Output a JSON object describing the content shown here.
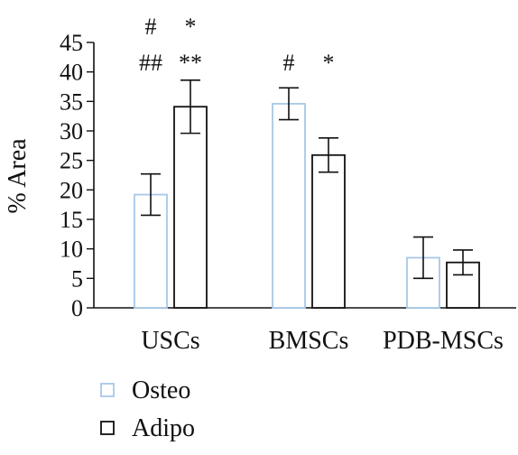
{
  "chart_data": {
    "type": "bar",
    "title": "",
    "xlabel": "",
    "ylabel": "% Area",
    "ylim": [
      0,
      45
    ],
    "yticks": [
      0,
      5,
      10,
      15,
      20,
      25,
      30,
      35,
      40,
      45
    ],
    "categories": [
      "USCs",
      "BMSCs",
      "PDB-MSCs"
    ],
    "series": [
      {
        "name": "Osteo",
        "values": [
          19.2,
          34.6,
          8.5
        ],
        "errors": [
          3.5,
          2.7,
          3.5
        ],
        "color": "#a8c8e8"
      },
      {
        "name": "Adipo",
        "values": [
          34.1,
          25.9,
          7.7
        ],
        "errors": [
          4.5,
          2.9,
          2.1
        ],
        "color": "#111111"
      }
    ],
    "annotations": [
      {
        "text": "#",
        "category": 0,
        "series": 0,
        "row": 0
      },
      {
        "text": "##",
        "category": 0,
        "series": 0,
        "row": 1
      },
      {
        "text": "*",
        "category": 0,
        "series": 1,
        "row": 0
      },
      {
        "text": "**",
        "category": 0,
        "series": 1,
        "row": 1
      },
      {
        "text": "#",
        "category": 1,
        "series": 0,
        "row": 1
      },
      {
        "text": "*",
        "category": 1,
        "series": 1,
        "row": 1
      }
    ],
    "grid": false,
    "legend_position": "bottom-left"
  }
}
